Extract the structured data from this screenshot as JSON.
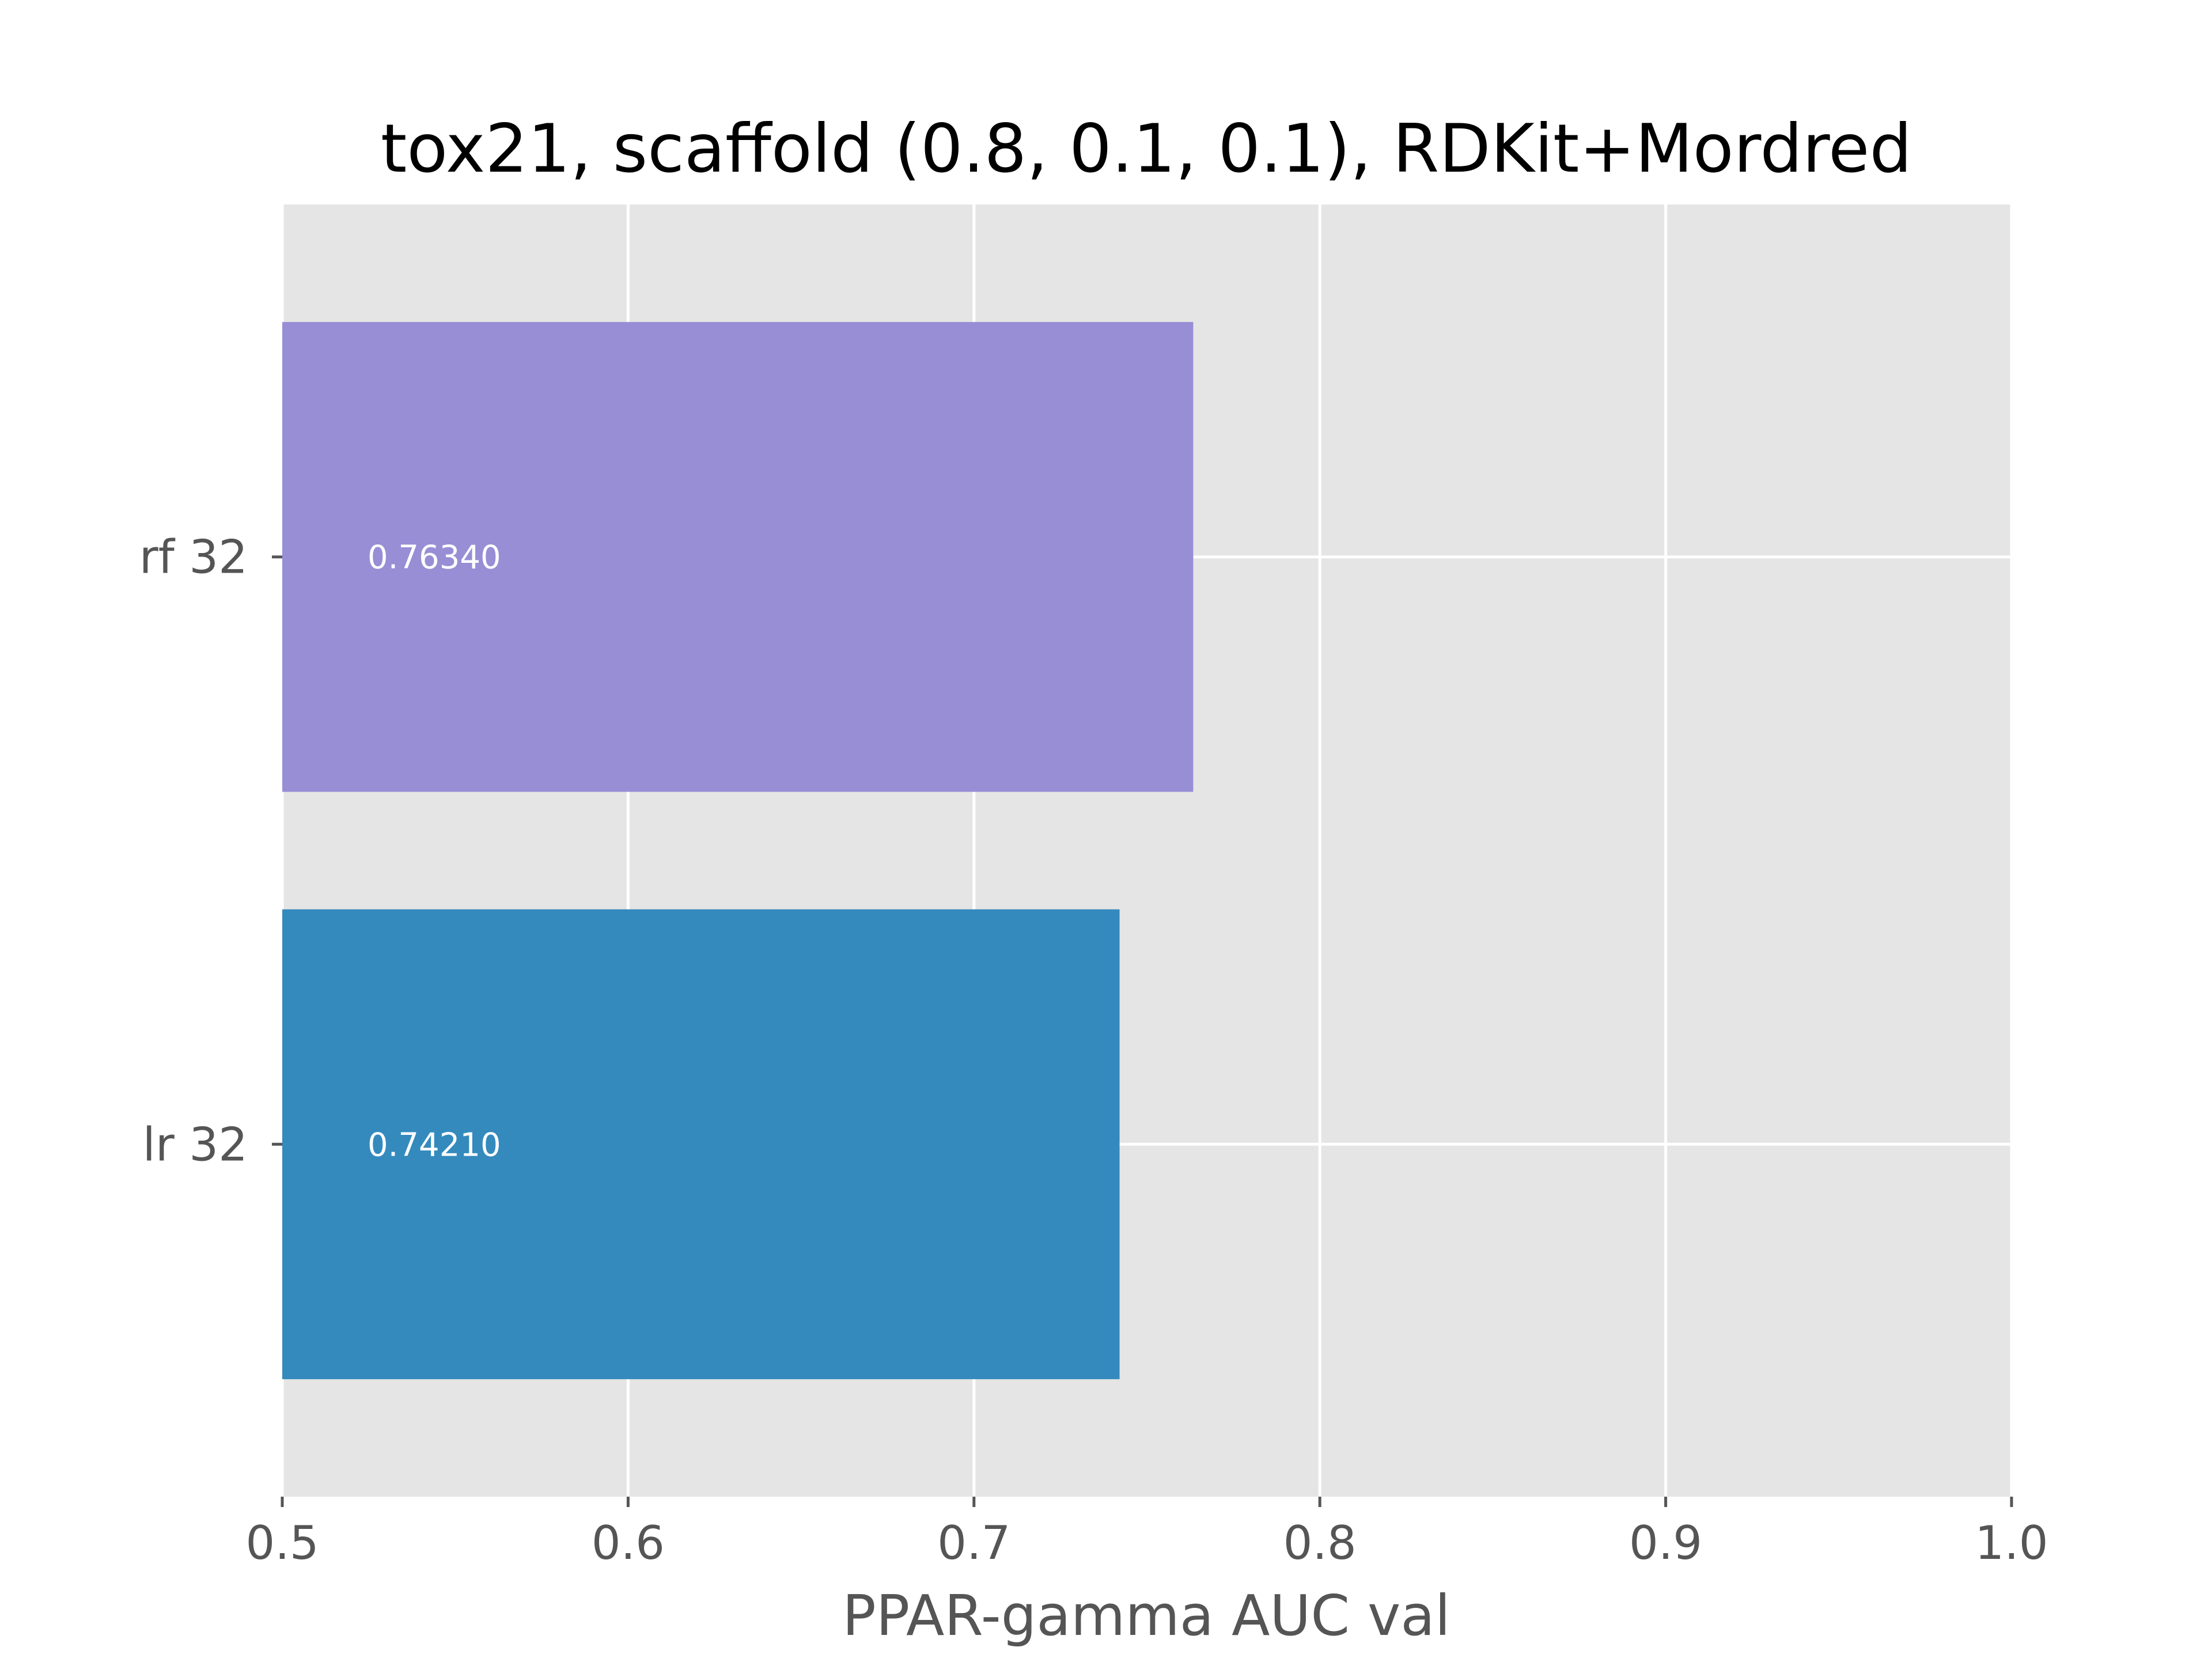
{
  "chart_data": {
    "type": "bar",
    "orientation": "horizontal",
    "title": "tox21, scaffold (0.8, 0.1, 0.1), RDKit+Mordred",
    "xlabel": "PPAR-gamma AUC val",
    "ylabel": "",
    "xlim": [
      0.5,
      1.0
    ],
    "xticks": [
      "0.5",
      "0.6",
      "0.7",
      "0.8",
      "0.9",
      "1.0"
    ],
    "grid": true,
    "background_color": "#e5e5e5",
    "grid_color": "#ffffff",
    "categories": [
      "rf 32",
      "lr 32"
    ],
    "values": [
      0.7634,
      0.7421
    ],
    "value_labels": [
      "0.76340",
      "0.74210"
    ],
    "colors": [
      "#988ed5",
      "#348abd"
    ]
  }
}
